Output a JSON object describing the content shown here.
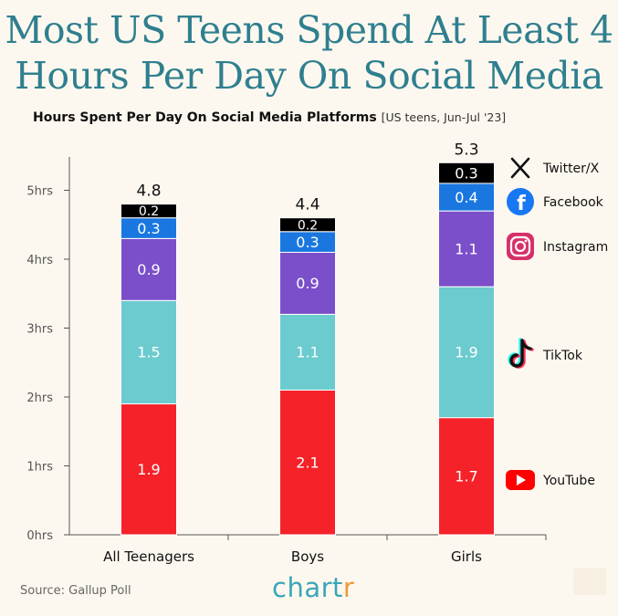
{
  "title_line1": "Most US Teens Spend At Least 4",
  "title_line2": "Hours Per Day On Social Media",
  "subtitle": "Hours Spent Per Day On Social Media Platforms",
  "subtitle_note": "[US teens, Jun-Jul '23]",
  "source": "Source: Gallup Poll",
  "brand_main": "chart",
  "brand_last": "r",
  "colors": {
    "YouTube": "#f5222a",
    "TikTok": "#6bcbcf",
    "Instagram": "#7b4fc9",
    "Facebook": "#1a77e0",
    "Twitter/X": "#000000",
    "title": "#2f7f8f",
    "background": "#fdf8ef"
  },
  "legend_icons": {
    "Twitter/X": "x-logo-icon",
    "Facebook": "facebook-logo-icon",
    "Instagram": "instagram-logo-icon",
    "TikTok": "tiktok-logo-icon",
    "YouTube": "youtube-logo-icon"
  },
  "chart_data": {
    "type": "bar",
    "stacked": true,
    "categories": [
      "All Teenagers",
      "Boys",
      "Girls"
    ],
    "series": [
      {
        "name": "YouTube",
        "values": [
          1.9,
          2.1,
          1.7
        ],
        "labels": [
          "1.9",
          "2.1",
          "1.7"
        ]
      },
      {
        "name": "TikTok",
        "values": [
          1.5,
          1.1,
          1.9
        ],
        "labels": [
          "1.5",
          "1.1",
          "1.9"
        ]
      },
      {
        "name": "Instagram",
        "values": [
          0.9,
          0.9,
          1.1
        ],
        "labels": [
          "0.9",
          "0.9",
          "1.1"
        ]
      },
      {
        "name": "Facebook",
        "values": [
          0.3,
          0.3,
          0.4
        ],
        "labels": [
          "0.3",
          "0.3",
          "0.4"
        ]
      },
      {
        "name": "Twitter/X",
        "values": [
          0.2,
          0.2,
          0.3
        ],
        "labels": [
          "0.2",
          "0.2",
          "0.3"
        ]
      }
    ],
    "totals": [
      4.8,
      4.4,
      5.3
    ],
    "total_labels": [
      "4.8",
      "4.4",
      "5.3"
    ],
    "yticks": [
      0,
      1,
      2,
      3,
      4,
      5
    ],
    "ytick_labels": [
      "0hrs",
      "1hrs",
      "2hrs",
      "3hrs",
      "4hrs",
      "5hrs"
    ],
    "ylim": [
      0,
      5.5
    ],
    "grid": false,
    "legend": "right"
  }
}
